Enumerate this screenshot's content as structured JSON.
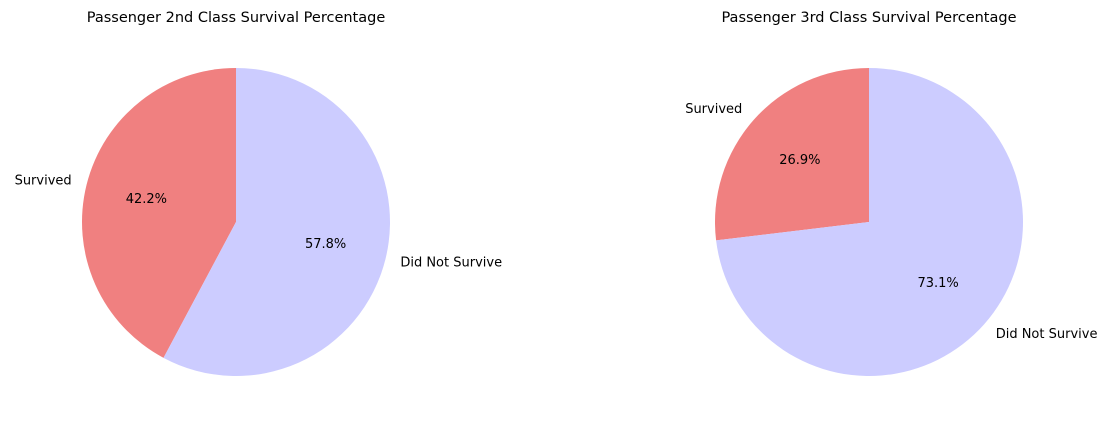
{
  "chart_data": [
    {
      "type": "pie",
      "title": "Passenger 2nd Class Survival Percentage",
      "labels": [
        "Survived",
        "Did Not Survive"
      ],
      "values": [
        42.2,
        57.8
      ],
      "value_labels": [
        "42.2%",
        "57.8%"
      ],
      "colors": [
        "#f08080",
        "#ccccff"
      ],
      "start_angle": "90 degrees (top)",
      "direction": "counterclockwise"
    },
    {
      "type": "pie",
      "title": "Passenger 3rd Class Survival Percentage",
      "labels": [
        "Survived",
        "Did Not Survive"
      ],
      "values": [
        26.9,
        73.1
      ],
      "value_labels": [
        "26.9%",
        "73.1%"
      ],
      "colors": [
        "#f08080",
        "#ccccff"
      ],
      "start_angle": "90 degrees (top)",
      "direction": "counterclockwise"
    }
  ]
}
